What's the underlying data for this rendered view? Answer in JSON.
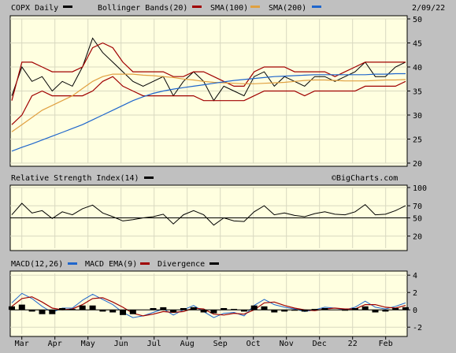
{
  "header": {
    "symbol_label": "COPX Daily",
    "bollinger_label": "Bollinger Bands(20)",
    "sma100_label": "SMA(100)",
    "sma200_label": "SMA(200)",
    "date": "2/09/22"
  },
  "rsi_header": {
    "label": "Relative Strength Index(14)",
    "watermark": "©BigCharts.com"
  },
  "macd_header": {
    "macd_label": "MACD(12,26)",
    "ema_label": "MACD EMA(9)",
    "divergence_label": "Divergence"
  },
  "colors": {
    "price": "#000000",
    "bollinger": "#a00000",
    "sma100": "#e0a040",
    "sma200": "#1f66cc",
    "macd": "#1f66cc",
    "macd_ema": "#a00000",
    "divergence": "#000000",
    "panel_bg": "#ffffe0"
  },
  "chart_data": [
    {
      "type": "line",
      "title": "COPX Daily",
      "x_ticks": [
        "Mar",
        "Apr",
        "May",
        "Jun",
        "Jul",
        "Aug",
        "Sep",
        "Oct",
        "Nov",
        "Dec",
        "22",
        "Feb"
      ],
      "y_ticks": [
        20,
        25,
        30,
        35,
        40,
        45,
        50
      ],
      "ylim": [
        20,
        50
      ],
      "series": [
        {
          "name": "COPX Daily",
          "values": [
            34,
            40,
            37,
            38,
            35,
            37,
            36,
            40,
            46,
            43,
            41,
            39,
            37,
            36,
            37,
            38,
            34,
            37,
            39,
            37,
            33,
            36,
            35,
            34,
            38,
            39,
            36,
            38,
            37,
            36,
            38,
            38,
            37,
            38,
            39,
            41,
            38,
            38,
            40,
            41
          ]
        },
        {
          "name": "Bollinger Bands(20)",
          "values": [
            33,
            41,
            41,
            40,
            39,
            39,
            39,
            40,
            44,
            45,
            44,
            41,
            39,
            39,
            39,
            39,
            38,
            38,
            39,
            39,
            38,
            37,
            36,
            36,
            39,
            40,
            40,
            40,
            39,
            39,
            39,
            39,
            38,
            39,
            40,
            41,
            41,
            41,
            41,
            41
          ]
        },
        {
          "name": "Bollinger Bands(20) lower",
          "values": [
            28,
            30,
            34,
            35,
            34,
            34,
            34,
            34,
            35,
            37,
            38,
            36,
            35,
            34,
            34,
            34,
            34,
            34,
            34,
            33,
            33,
            33,
            33,
            33,
            34,
            35,
            35,
            35,
            35,
            34,
            35,
            35,
            35,
            35,
            35,
            36,
            36,
            36,
            36,
            37
          ]
        },
        {
          "name": "SMA(100)",
          "values": [
            26.5,
            28,
            29.5,
            31,
            32,
            33,
            34,
            35.5,
            37,
            38,
            38.5,
            38.5,
            38.5,
            38.3,
            38.2,
            38,
            37.8,
            37.5,
            37.3,
            37,
            36.8,
            36.7,
            36.6,
            36.5,
            36.5,
            36.6,
            36.7,
            36.8,
            37,
            37.2,
            37.3,
            37.3,
            37.2,
            37.1,
            37.1,
            37.1,
            37.2,
            37.3,
            37.3,
            37.4
          ]
        },
        {
          "name": "SMA(200)",
          "values": [
            22.5,
            23.3,
            24,
            24.8,
            25.6,
            26.4,
            27.2,
            28,
            29,
            30,
            31,
            32,
            33,
            33.8,
            34.5,
            35,
            35.4,
            35.7,
            36,
            36.3,
            36.6,
            36.9,
            37.2,
            37.4,
            37.6,
            37.8,
            38,
            38.1,
            38.2,
            38.3,
            38.4,
            38.4,
            38.4,
            38.4,
            38.4,
            38.4,
            38.5,
            38.5,
            38.6,
            38.6
          ]
        }
      ]
    },
    {
      "type": "line",
      "title": "Relative Strength Index(14)",
      "y_ticks": [
        20,
        50,
        70,
        100
      ],
      "ylim": [
        0,
        100
      ],
      "series": [
        {
          "name": "Relative Strength Index(14)",
          "values": [
            55,
            74,
            58,
            62,
            49,
            60,
            55,
            65,
            71,
            58,
            52,
            45,
            47,
            50,
            52,
            56,
            40,
            55,
            62,
            55,
            38,
            50,
            45,
            44,
            60,
            70,
            55,
            58,
            54,
            52,
            57,
            60,
            56,
            55,
            60,
            72,
            55,
            56,
            62,
            70
          ]
        }
      ]
    },
    {
      "type": "line",
      "title": "MACD(12,26)",
      "y_ticks": [
        -2,
        0,
        2,
        4
      ],
      "ylim": [
        -2.8,
        4.2
      ],
      "series": [
        {
          "name": "MACD(12,26)",
          "values": [
            0.8,
            1.9,
            1.3,
            0.4,
            -0.3,
            0.2,
            0.2,
            1.1,
            1.8,
            1.2,
            0.6,
            -0.3,
            -0.9,
            -0.7,
            -0.3,
            0.1,
            -0.6,
            0.0,
            0.5,
            -0.2,
            -0.9,
            -0.4,
            -0.3,
            -0.7,
            0.5,
            1.2,
            0.6,
            0.3,
            0.1,
            -0.2,
            0.0,
            0.3,
            0.2,
            0.0,
            0.3,
            1.0,
            0.3,
            0.1,
            0.4,
            0.8
          ]
        },
        {
          "name": "MACD EMA(9)",
          "values": [
            0.4,
            1.3,
            1.5,
            0.9,
            0.2,
            0.0,
            0.1,
            0.6,
            1.3,
            1.4,
            0.9,
            0.3,
            -0.4,
            -0.7,
            -0.5,
            -0.2,
            -0.3,
            -0.2,
            0.2,
            0.1,
            -0.5,
            -0.6,
            -0.4,
            -0.5,
            0.0,
            0.8,
            0.9,
            0.5,
            0.2,
            0.0,
            -0.1,
            0.1,
            0.2,
            0.1,
            0.1,
            0.6,
            0.6,
            0.3,
            0.2,
            0.5
          ]
        },
        {
          "name": "Divergence",
          "values": [
            0.4,
            0.6,
            -0.2,
            -0.5,
            -0.5,
            0.2,
            0.1,
            0.5,
            0.5,
            -0.2,
            -0.3,
            -0.6,
            -0.5,
            0.0,
            0.2,
            0.3,
            -0.3,
            0.2,
            0.3,
            -0.3,
            -0.4,
            0.2,
            0.1,
            -0.2,
            0.5,
            0.4,
            -0.3,
            -0.2,
            -0.1,
            -0.2,
            0.1,
            0.2,
            0.0,
            -0.1,
            0.2,
            0.4,
            -0.3,
            -0.2,
            0.2,
            0.3
          ]
        }
      ]
    }
  ]
}
